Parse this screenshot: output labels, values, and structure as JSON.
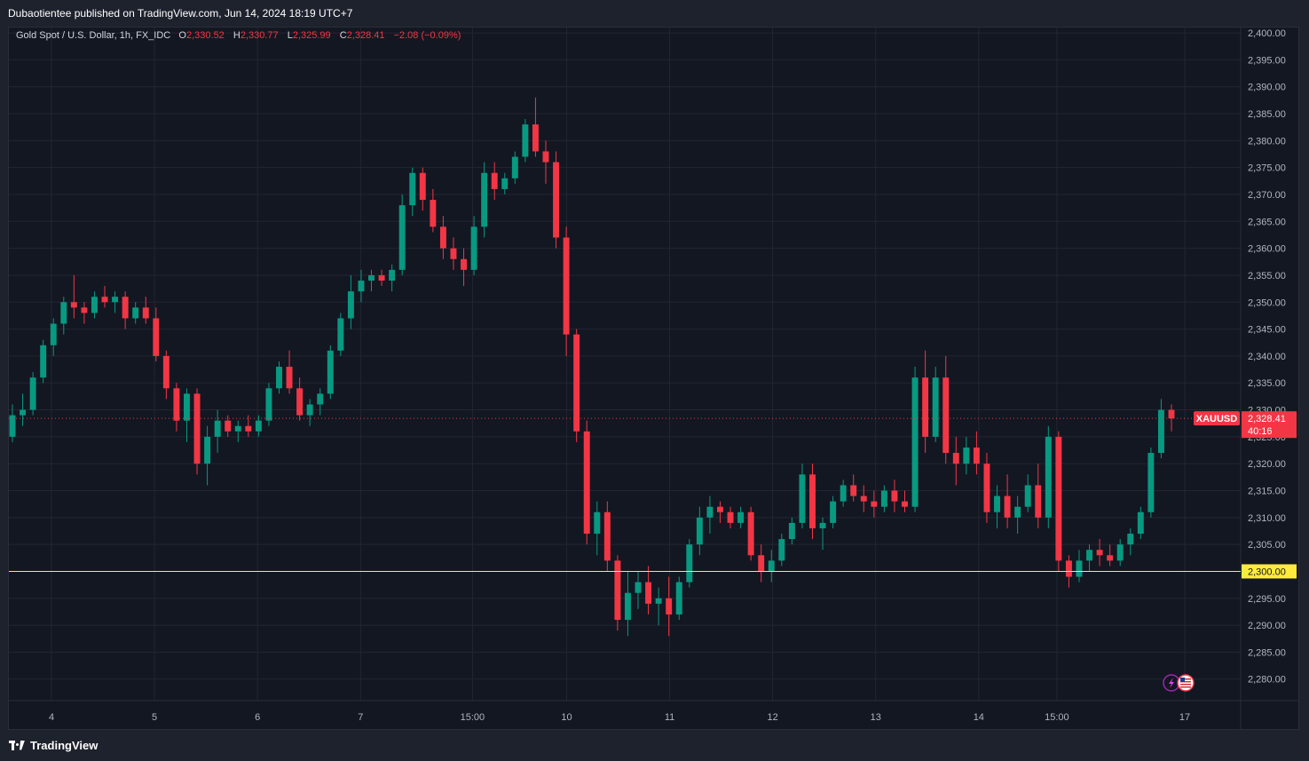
{
  "header": {
    "published_by": "Dubaotientee published on TradingView.com, Jun 14, 2024 18:19 UTC+7"
  },
  "legend": {
    "symbol": "Gold Spot / U.S. Dollar, 1h, FX_IDC",
    "open_label": "O",
    "open": "2,330.52",
    "high_label": "H",
    "high": "2,330.77",
    "low_label": "L",
    "low": "2,325.99",
    "close_label": "C",
    "close": "2,328.41",
    "change": "−2.08 (−0.09%)"
  },
  "price_tag": {
    "symbol": "XAUUSD",
    "price": "2,328.41",
    "countdown": "40:16"
  },
  "level_tag": {
    "label": "2,300.00"
  },
  "footer": {
    "brand": "TradingView"
  },
  "icons": {
    "flash": "lightning-icon",
    "flag": "us-flag-icon"
  },
  "colors": {
    "background": "#131722",
    "grid": "#232632",
    "up": "#089981",
    "down": "#f23645",
    "level_line": "#ffeb3b",
    "price_line": "#f23645"
  },
  "chart_data": {
    "type": "candlestick",
    "title": "Gold Spot / U.S. Dollar, 1h, FX_IDC",
    "ylim": [
      2276,
      2401
    ],
    "y_ticks": [
      "2,280.00",
      "2,285.00",
      "2,290.00",
      "2,295.00",
      "2,300.00",
      "2,305.00",
      "2,310.00",
      "2,315.00",
      "2,320.00",
      "2,325.00",
      "2,330.00",
      "2,335.00",
      "2,340.00",
      "2,345.00",
      "2,350.00",
      "2,355.00",
      "2,360.00",
      "2,365.00",
      "2,370.00",
      "2,375.00",
      "2,380.00",
      "2,385.00",
      "2,390.00",
      "2,395.00",
      "2,400.00"
    ],
    "x_ticks": [
      "4",
      "5",
      "6",
      "7",
      "15:00",
      "10",
      "11",
      "12",
      "13",
      "14",
      "15:00",
      "17"
    ],
    "grid": true,
    "horizontal_level": 2300.0,
    "last_price": 2328.41,
    "candles_ohlc_approx": [
      [
        2325,
        2331,
        2324,
        2329
      ],
      [
        2329,
        2333,
        2327,
        2330
      ],
      [
        2330,
        2337,
        2329,
        2336
      ],
      [
        2336,
        2343,
        2335,
        2342
      ],
      [
        2342,
        2347,
        2340,
        2346
      ],
      [
        2346,
        2351,
        2344,
        2350
      ],
      [
        2350,
        2355,
        2347,
        2349
      ],
      [
        2349,
        2350,
        2346,
        2348
      ],
      [
        2348,
        2352,
        2347,
        2351
      ],
      [
        2351,
        2353,
        2349,
        2350
      ],
      [
        2350,
        2352,
        2348,
        2351
      ],
      [
        2351,
        2352,
        2345,
        2347
      ],
      [
        2347,
        2350,
        2346,
        2349
      ],
      [
        2349,
        2351,
        2346,
        2347
      ],
      [
        2347,
        2349,
        2339,
        2340
      ],
      [
        2340,
        2341,
        2332,
        2334
      ],
      [
        2334,
        2335,
        2326,
        2328
      ],
      [
        2328,
        2334,
        2324,
        2333
      ],
      [
        2333,
        2334,
        2318,
        2320
      ],
      [
        2320,
        2327,
        2316,
        2325
      ],
      [
        2325,
        2330,
        2322,
        2328
      ],
      [
        2328,
        2329,
        2325,
        2326
      ],
      [
        2326,
        2328,
        2324,
        2327
      ],
      [
        2327,
        2329,
        2325,
        2326
      ],
      [
        2326,
        2329,
        2325,
        2328
      ],
      [
        2328,
        2335,
        2327,
        2334
      ],
      [
        2334,
        2339,
        2333,
        2338
      ],
      [
        2338,
        2341,
        2333,
        2334
      ],
      [
        2334,
        2336,
        2328,
        2329
      ],
      [
        2329,
        2332,
        2327,
        2331
      ],
      [
        2331,
        2334,
        2329,
        2333
      ],
      [
        2333,
        2342,
        2332,
        2341
      ],
      [
        2341,
        2348,
        2340,
        2347
      ],
      [
        2347,
        2355,
        2345,
        2352
      ],
      [
        2352,
        2356,
        2350,
        2354
      ],
      [
        2354,
        2356,
        2352,
        2355
      ],
      [
        2355,
        2356,
        2353,
        2354
      ],
      [
        2354,
        2357,
        2352,
        2356
      ],
      [
        2356,
        2370,
        2355,
        2368
      ],
      [
        2368,
        2375,
        2366,
        2374
      ],
      [
        2374,
        2375,
        2367,
        2369
      ],
      [
        2369,
        2371,
        2363,
        2364
      ],
      [
        2364,
        2366,
        2358,
        2360
      ],
      [
        2360,
        2362,
        2356,
        2358
      ],
      [
        2358,
        2360,
        2353,
        2356
      ],
      [
        2356,
        2366,
        2355,
        2364
      ],
      [
        2364,
        2376,
        2362,
        2374
      ],
      [
        2374,
        2376,
        2369,
        2371
      ],
      [
        2371,
        2374,
        2370,
        2373
      ],
      [
        2373,
        2378,
        2372,
        2377
      ],
      [
        2377,
        2384,
        2376,
        2383
      ],
      [
        2383,
        2388,
        2377,
        2378
      ],
      [
        2378,
        2380,
        2372,
        2376
      ],
      [
        2376,
        2378,
        2360,
        2362
      ],
      [
        2362,
        2364,
        2340,
        2344
      ],
      [
        2344,
        2345,
        2324,
        2326
      ],
      [
        2326,
        2328,
        2305,
        2307
      ],
      [
        2307,
        2313,
        2303,
        2311
      ],
      [
        2311,
        2313,
        2300,
        2302
      ],
      [
        2302,
        2303,
        2289,
        2291
      ],
      [
        2291,
        2300,
        2288,
        2296
      ],
      [
        2296,
        2300,
        2293,
        2298
      ],
      [
        2298,
        2301,
        2292,
        2294
      ],
      [
        2294,
        2297,
        2290,
        2295
      ],
      [
        2295,
        2299,
        2288,
        2292
      ],
      [
        2292,
        2299,
        2291,
        2298
      ],
      [
        2298,
        2306,
        2297,
        2305
      ],
      [
        2305,
        2312,
        2303,
        2310
      ],
      [
        2310,
        2314,
        2307,
        2312
      ],
      [
        2312,
        2313,
        2309,
        2311
      ],
      [
        2311,
        2312,
        2308,
        2309
      ],
      [
        2309,
        2312,
        2308,
        2311
      ],
      [
        2311,
        2312,
        2302,
        2303
      ],
      [
        2303,
        2305,
        2298,
        2300
      ],
      [
        2300,
        2304,
        2298,
        2302
      ],
      [
        2302,
        2307,
        2301,
        2306
      ],
      [
        2306,
        2310,
        2305,
        2309
      ],
      [
        2309,
        2320,
        2308,
        2318
      ],
      [
        2318,
        2320,
        2306,
        2308
      ],
      [
        2308,
        2310,
        2304,
        2309
      ],
      [
        2309,
        2314,
        2308,
        2313
      ],
      [
        2313,
        2317,
        2312,
        2316
      ],
      [
        2316,
        2318,
        2313,
        2314
      ],
      [
        2314,
        2316,
        2311,
        2313
      ],
      [
        2313,
        2315,
        2310,
        2312
      ],
      [
        2312,
        2316,
        2311,
        2315
      ],
      [
        2315,
        2317,
        2311,
        2313
      ],
      [
        2313,
        2315,
        2311,
        2312
      ],
      [
        2312,
        2338,
        2311,
        2336
      ],
      [
        2336,
        2341,
        2322,
        2325
      ],
      [
        2325,
        2338,
        2324,
        2336
      ],
      [
        2336,
        2340,
        2320,
        2322
      ],
      [
        2322,
        2325,
        2316,
        2320
      ],
      [
        2320,
        2325,
        2318,
        2323
      ],
      [
        2323,
        2326,
        2318,
        2320
      ],
      [
        2320,
        2322,
        2309,
        2311
      ],
      [
        2311,
        2316,
        2308,
        2314
      ],
      [
        2314,
        2318,
        2308,
        2310
      ],
      [
        2310,
        2314,
        2307,
        2312
      ],
      [
        2312,
        2318,
        2311,
        2316
      ],
      [
        2316,
        2320,
        2308,
        2310
      ],
      [
        2310,
        2327,
        2308,
        2325
      ],
      [
        2325,
        2326,
        2300,
        2302
      ],
      [
        2302,
        2303,
        2297,
        2299
      ],
      [
        2299,
        2304,
        2298,
        2302
      ],
      [
        2302,
        2305,
        2300,
        2304
      ],
      [
        2304,
        2306,
        2301,
        2303
      ],
      [
        2303,
        2305,
        2301,
        2302
      ],
      [
        2302,
        2306,
        2301,
        2305
      ],
      [
        2305,
        2308,
        2303,
        2307
      ],
      [
        2307,
        2312,
        2306,
        2311
      ],
      [
        2311,
        2323,
        2310,
        2322
      ],
      [
        2322,
        2332,
        2321,
        2330
      ],
      [
        2330,
        2331,
        2326,
        2328.41
      ]
    ]
  }
}
